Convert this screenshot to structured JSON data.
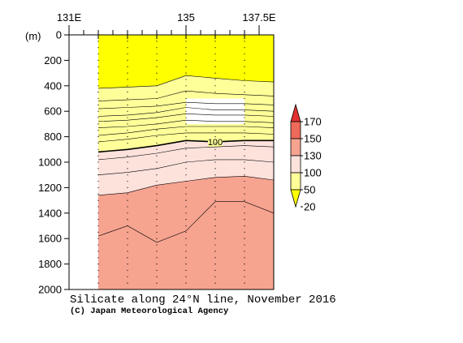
{
  "chart_data": {
    "type": "area",
    "title": "Silicate along 24°N line, November 2016",
    "credit": "(C) Japan Meteorological Agency",
    "y_unit_label": "(m)",
    "x_range": [
      131.0,
      138.0
    ],
    "x_tick_labels": [
      {
        "lon": 131.0,
        "label": "131E"
      },
      {
        "lon": 135.0,
        "label": "135"
      },
      {
        "lon": 137.5,
        "label": "137.5E"
      }
    ],
    "x_minor_ticks": [
      131.5,
      132.0,
      132.5,
      133.0,
      133.5,
      134.0,
      134.5,
      135.5,
      136.0,
      136.5,
      137.0
    ],
    "station_lons": [
      132.0,
      133.0,
      134.0,
      135.0,
      136.0,
      137.0
    ],
    "ylim": [
      0,
      2000
    ],
    "y_ticks": [
      0,
      200,
      400,
      600,
      800,
      1000,
      1200,
      1400,
      1600,
      1800,
      2000
    ],
    "data_extent": {
      "lon_min": 132.0,
      "lon_max": 138.0
    },
    "missing_box": {
      "lon": [
        135.0,
        137.0
      ],
      "depth": [
        500,
        700
      ]
    },
    "contour_x": [
      132.0,
      133.0,
      134.0,
      135.0,
      136.0,
      137.0,
      138.0
    ],
    "contours": [
      {
        "value": 20,
        "depths": [
          420,
          410,
          400,
          320,
          340,
          360,
          370
        ]
      },
      {
        "value": 30,
        "depths": [
          520,
          510,
          500,
          440,
          460,
          470,
          480
        ]
      },
      {
        "value": 40,
        "depths": [
          580,
          570,
          560,
          530,
          540,
          540,
          550
        ]
      },
      {
        "value": 50,
        "depths": [
          640,
          630,
          610,
          570,
          590,
          590,
          600
        ]
      },
      {
        "value": 60,
        "depths": [
          680,
          670,
          650,
          620,
          630,
          630,
          640
        ]
      },
      {
        "value": 70,
        "depths": [
          730,
          720,
          700,
          670,
          680,
          680,
          690
        ]
      },
      {
        "value": 80,
        "depths": [
          790,
          770,
          740,
          720,
          720,
          720,
          730
        ]
      },
      {
        "value": 90,
        "depths": [
          840,
          820,
          790,
          770,
          770,
          770,
          780
        ]
      },
      {
        "value": 100,
        "depths": [
          920,
          900,
          870,
          830,
          840,
          830,
          830
        ],
        "label": "100",
        "label_lon": 136.0
      },
      {
        "value": 110,
        "depths": [
          980,
          960,
          930,
          890,
          880,
          870,
          880
        ]
      },
      {
        "value": 120,
        "depths": [
          1100,
          1080,
          1050,
          1000,
          980,
          980,
          1000
        ]
      },
      {
        "value": 130,
        "depths": [
          1260,
          1240,
          1180,
          1150,
          1120,
          1110,
          1140
        ]
      },
      {
        "value": 150,
        "depths": [
          1580,
          1500,
          1630,
          1540,
          1310,
          1310,
          1400
        ]
      }
    ],
    "fill_bands": [
      {
        "from_depth": "top",
        "to_contour": 20,
        "color": "#ffff00"
      },
      {
        "from_contour": 20,
        "to_contour": 100,
        "color": "#ffff99"
      },
      {
        "from_contour": 100,
        "to_contour": 130,
        "color": "#fde2dc"
      },
      {
        "from_contour": 130,
        "to_depth": "bottom",
        "color": "#f6a390"
      }
    ],
    "colorbar": {
      "levels": [
        "20",
        "50",
        "100",
        "130",
        "150",
        "170"
      ],
      "colors": [
        "#ffff00",
        "#ffff99",
        "#fde2dc",
        "#f6a390",
        "#ee6a5a",
        "#e33030"
      ]
    }
  }
}
